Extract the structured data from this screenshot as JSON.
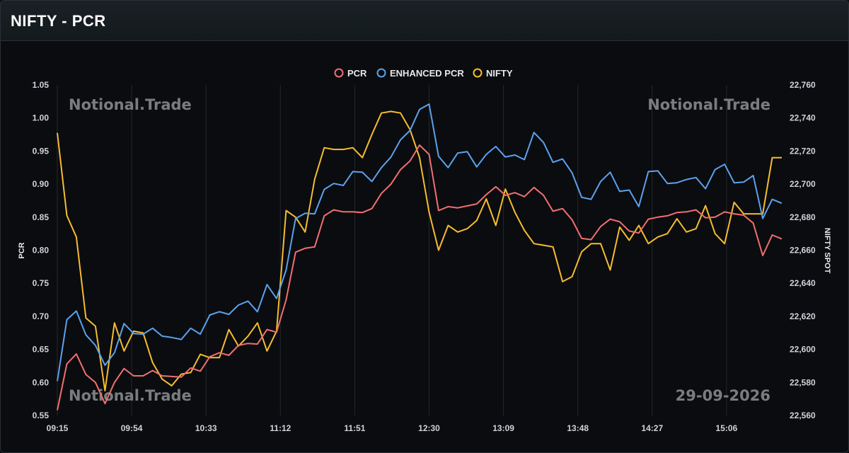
{
  "header": {
    "title": "NIFTY - PCR"
  },
  "watermarks": {
    "top_left": "Notional.Trade",
    "top_right": "Notional.Trade",
    "bottom_left": "Notional.Trade",
    "bottom_right": "29-09-2026"
  },
  "colors": {
    "pcr": "#f06f72",
    "enhanced_pcr": "#5aa2ee",
    "nifty": "#f5bd2f",
    "grid": "#23272c"
  },
  "chart_data": {
    "type": "line",
    "title": "",
    "xlabel": "",
    "ylabel": "PCR",
    "y2label": "NIFTY SPOT",
    "legend": "top-center",
    "grid": true,
    "x_ticks": [
      "09:15",
      "09:54",
      "10:33",
      "11:12",
      "11:51",
      "12:30",
      "13:09",
      "13:48",
      "14:27",
      "15:06"
    ],
    "ylim": [
      0.55,
      1.05
    ],
    "y_ticks": [
      "1.05",
      "1.00",
      "0.95",
      "0.90",
      "0.85",
      "0.80",
      "0.75",
      "0.70",
      "0.65",
      "0.60",
      "0.55"
    ],
    "y2lim": [
      22560,
      22760
    ],
    "y2_ticks": [
      "22,760",
      "22,740",
      "22,720",
      "22,700",
      "22,680",
      "22,660",
      "22,640",
      "22,620",
      "22,600",
      "22,580",
      "22,560"
    ],
    "series": [
      {
        "name": "PCR",
        "axis": "left",
        "values": [
          0.558,
          0.628,
          0.643,
          0.612,
          0.6,
          0.568,
          0.6,
          0.621,
          0.61,
          0.61,
          0.618,
          0.61,
          0.609,
          0.608,
          0.622,
          0.617,
          0.639,
          0.645,
          0.641,
          0.656,
          0.659,
          0.658,
          0.68,
          0.676,
          0.725,
          0.797,
          0.803,
          0.805,
          0.852,
          0.861,
          0.858,
          0.858,
          0.857,
          0.863,
          0.886,
          0.9,
          0.922,
          0.935,
          0.959,
          0.945,
          0.86,
          0.866,
          0.864,
          0.867,
          0.87,
          0.884,
          0.896,
          0.883,
          0.887,
          0.881,
          0.895,
          0.883,
          0.859,
          0.863,
          0.846,
          0.818,
          0.816,
          0.836,
          0.847,
          0.843,
          0.829,
          0.826,
          0.847,
          0.85,
          0.852,
          0.857,
          0.858,
          0.861,
          0.849,
          0.85,
          0.858,
          0.855,
          0.853,
          0.841,
          0.792,
          0.823,
          0.817
        ]
      },
      {
        "name": "ENHANCED PCR",
        "axis": "left",
        "values": [
          0.602,
          0.695,
          0.708,
          0.672,
          0.656,
          0.626,
          0.645,
          0.689,
          0.674,
          0.673,
          0.682,
          0.67,
          0.668,
          0.665,
          0.682,
          0.673,
          0.702,
          0.707,
          0.703,
          0.717,
          0.723,
          0.707,
          0.748,
          0.727,
          0.77,
          0.848,
          0.856,
          0.855,
          0.892,
          0.901,
          0.898,
          0.919,
          0.918,
          0.904,
          0.925,
          0.941,
          0.967,
          0.981,
          1.013,
          1.021,
          0.942,
          0.925,
          0.947,
          0.949,
          0.926,
          0.945,
          0.957,
          0.941,
          0.944,
          0.937,
          0.978,
          0.963,
          0.933,
          0.938,
          0.917,
          0.88,
          0.877,
          0.904,
          0.918,
          0.889,
          0.891,
          0.866,
          0.919,
          0.92,
          0.901,
          0.902,
          0.907,
          0.91,
          0.893,
          0.922,
          0.93,
          0.902,
          0.903,
          0.913,
          0.848,
          0.877,
          0.871
        ]
      },
      {
        "name": "NIFTY",
        "axis": "right",
        "values": [
          22731,
          22681,
          22668,
          22619,
          22614,
          22575,
          22616,
          22599,
          22611,
          22610,
          22592,
          22582,
          22578,
          22585,
          22586,
          22597,
          22595,
          22595,
          22612,
          22602,
          22608,
          22616,
          22599,
          22611,
          22684,
          22680,
          22671,
          22703,
          22722,
          22721,
          22721,
          22722,
          22716,
          22730,
          22743,
          22744,
          22743,
          22733,
          22716,
          22683,
          22660,
          22675,
          22671,
          22673,
          22678,
          22691,
          22675,
          22697,
          22683,
          22672,
          22664,
          22663,
          22662,
          22641,
          22644,
          22659,
          22664,
          22664,
          22648,
          22674,
          22666,
          22675,
          22664,
          22668,
          22670,
          22679,
          22671,
          22673,
          22687,
          22670,
          22664,
          22689,
          22682,
          22682,
          22682,
          22716,
          22716
        ]
      }
    ]
  }
}
